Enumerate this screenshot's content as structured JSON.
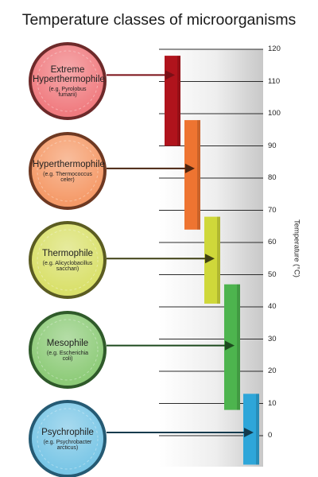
{
  "title": "Temperature classes of microorganisms",
  "axis": {
    "label": "Temperature (°C)",
    "min": -10,
    "max": 125,
    "ticks": [
      120,
      110,
      100,
      90,
      80,
      70,
      60,
      50,
      40,
      30,
      20,
      10,
      0
    ]
  },
  "classes": [
    {
      "key": "extreme",
      "name_lines": [
        "Extreme",
        "Hyperthermophile"
      ],
      "example_lines": [
        "(e.g. Pyrolobus",
        "fumarii)"
      ],
      "range": [
        90,
        118
      ],
      "arrow_temp": 112,
      "colors": {
        "circle": "#f07b7f",
        "ring": "#6d2a2a",
        "bar": "#b0131c",
        "arrow": "#7a0f16"
      }
    },
    {
      "key": "hyper",
      "name_lines": [
        "Hyperthermophile"
      ],
      "example_lines": [
        "(e.g. Thermococcus",
        "celer)"
      ],
      "range": [
        64,
        98
      ],
      "arrow_temp": 83,
      "colors": {
        "circle": "#f59a68",
        "ring": "#6e3922",
        "bar": "#ee7431",
        "arrow": "#4a2410"
      }
    },
    {
      "key": "thermo",
      "name_lines": [
        "Thermophile"
      ],
      "example_lines": [
        "(e.g. Alicyclobacillus",
        "sacchari)"
      ],
      "range": [
        41,
        68
      ],
      "arrow_temp": 55,
      "colors": {
        "circle": "#d9e06a",
        "ring": "#5b5c22",
        "bar": "#cfd83a",
        "arrow": "#3f4014"
      }
    },
    {
      "key": "meso",
      "name_lines": [
        "Mesophile"
      ],
      "example_lines": [
        "(e.g. Escherichia",
        "coli)"
      ],
      "range": [
        8,
        47
      ],
      "arrow_temp": 28,
      "colors": {
        "circle": "#8dcb78",
        "ring": "#2f5a2a",
        "bar": "#4db44e",
        "arrow": "#1d4a1e"
      }
    },
    {
      "key": "psychro",
      "name_lines": [
        "Psychrophile"
      ],
      "example_lines": [
        "(e.g. Psychrobacter",
        "arcticus)"
      ],
      "range": [
        -9,
        13
      ],
      "arrow_temp": 1,
      "colors": {
        "circle": "#79c6e6",
        "ring": "#255a73",
        "bar": "#2ea6d9",
        "arrow": "#133a4d"
      }
    }
  ]
}
